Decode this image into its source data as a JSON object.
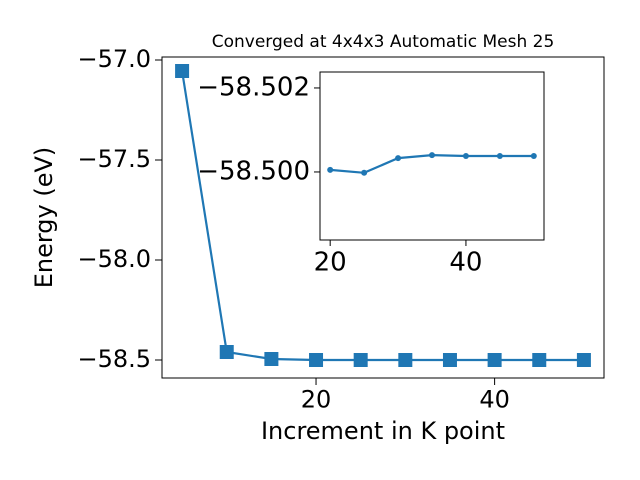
{
  "chart_data": [
    {
      "type": "line",
      "title": "Converged at 4x4x3 Automatic Mesh 25",
      "xlabel": "Increment in K point",
      "ylabel": "Energy (eV)",
      "x": [
        5,
        10,
        15,
        20,
        25,
        30,
        35,
        40,
        45,
        50
      ],
      "series": [
        {
          "color": "#1f77b4",
          "marker": "square",
          "values": [
            -57.055,
            -58.46,
            -58.495,
            -58.5,
            -58.5,
            -58.5,
            -58.5,
            -58.5,
            -58.5,
            -58.5
          ]
        }
      ],
      "xlim": [
        2.75,
        52.25
      ],
      "xticks": [
        20,
        40
      ],
      "ylim": [
        -58.59,
        -56.985
      ],
      "yticks": [
        {
          "value": -57.0,
          "label": "−57.0"
        },
        {
          "value": -57.5,
          "label": "−57.5"
        },
        {
          "value": -58.0,
          "label": "−58.0"
        },
        {
          "value": -58.5,
          "label": "−58.5"
        }
      ]
    },
    {
      "type": "line",
      "x": [
        20,
        25,
        30,
        35,
        40,
        45,
        50
      ],
      "series": [
        {
          "color": "#1f77b4",
          "marker": "circle",
          "values": [
            -58.50005,
            -58.49998,
            -58.50033,
            -58.5004,
            -58.50038,
            -58.50038,
            -58.50038
          ]
        }
      ],
      "xlim": [
        18.5,
        51.5
      ],
      "xticks": [
        20,
        40
      ],
      "ylim": [
        -58.49838,
        -58.50238
      ],
      "yticks": [
        {
          "value": -58.502,
          "label": "−58.502"
        },
        {
          "value": -58.5,
          "label": "−58.500"
        }
      ]
    }
  ]
}
